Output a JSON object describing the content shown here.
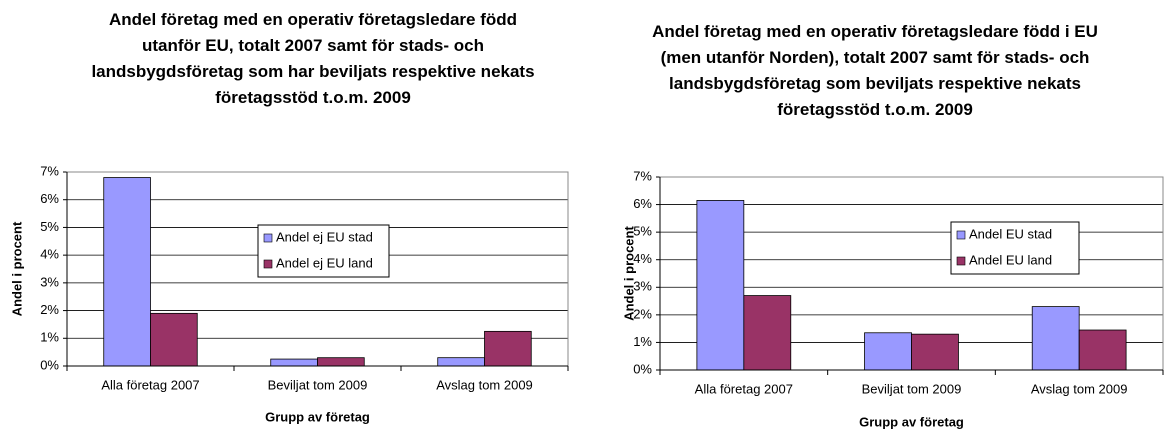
{
  "chart_data": [
    {
      "type": "bar",
      "title": "Andel företag med en operativ företagsledare född utanför EU, totalt 2007 samt för stads- och landsbygdsföretag som har beviljats respektive nekats företagsstöd t.o.m. 2009",
      "x_label": "Grupp av företag",
      "y_label": "Andel i procent",
      "categories": [
        "Alla företag 2007",
        "Beviljat tom 2009",
        "Avslag tom 2009"
      ],
      "series": [
        {
          "name": "Andel ej EU stad",
          "color": "#9999ff",
          "values": [
            6.8,
            0.25,
            0.3
          ]
        },
        {
          "name": "Andel ej EU land",
          "color": "#993366",
          "values": [
            1.9,
            0.3,
            1.25
          ]
        }
      ],
      "ylim": [
        0,
        7
      ],
      "yticks": [
        {
          "value": 0,
          "label": "0%"
        },
        {
          "value": 1,
          "label": "1%"
        },
        {
          "value": 2,
          "label": "2%"
        },
        {
          "value": 3,
          "label": "3%"
        },
        {
          "value": 4,
          "label": "4%"
        },
        {
          "value": 5,
          "label": "5%"
        },
        {
          "value": 6,
          "label": "6%"
        },
        {
          "value": 7,
          "label": "7%"
        }
      ],
      "grid": true
    },
    {
      "type": "bar",
      "title": "Andel företag med en operativ företagsledare född i EU (men utanför Norden), totalt 2007 samt för stads- och landsbygdsföretag som beviljats respektive nekats företagsstöd t.o.m. 2009",
      "x_label": "Grupp av företag",
      "y_label": "Andel i procent",
      "categories": [
        "Alla företag 2007",
        "Beviljat tom 2009",
        "Avslag tom 2009"
      ],
      "series": [
        {
          "name": "Andel EU stad",
          "color": "#9999ff",
          "values": [
            6.15,
            1.35,
            2.3
          ]
        },
        {
          "name": "Andel EU land",
          "color": "#993366",
          "values": [
            2.7,
            1.3,
            1.45
          ]
        }
      ],
      "ylim": [
        0,
        7
      ],
      "yticks": [
        {
          "value": 0,
          "label": "0%"
        },
        {
          "value": 1,
          "label": "1%"
        },
        {
          "value": 2,
          "label": "2%"
        },
        {
          "value": 3,
          "label": "3%"
        },
        {
          "value": 4,
          "label": "4%"
        },
        {
          "value": 5,
          "label": "5%"
        },
        {
          "value": 6,
          "label": "6%"
        },
        {
          "value": 7,
          "label": "7%"
        }
      ],
      "grid": true
    }
  ]
}
